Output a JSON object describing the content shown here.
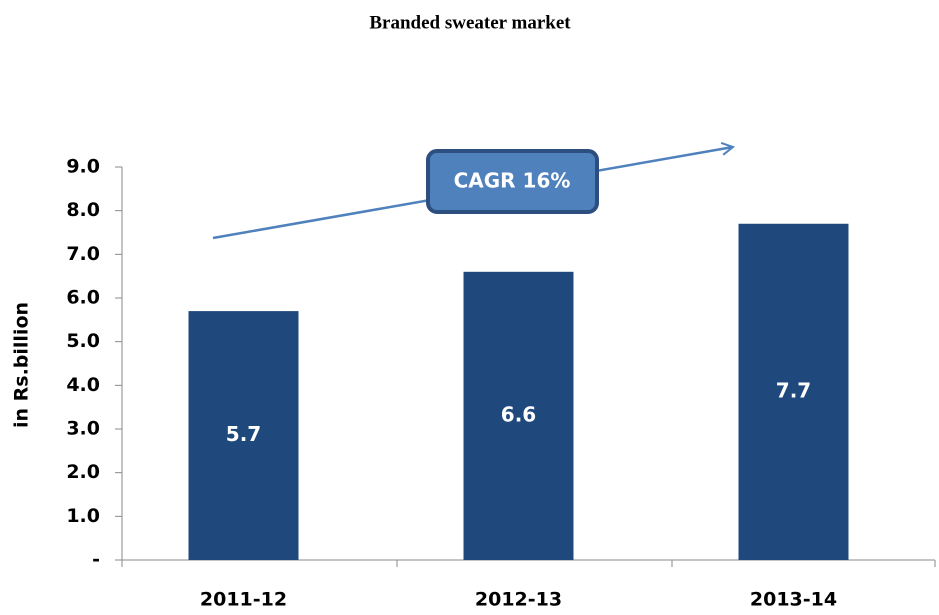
{
  "chart_data": {
    "type": "bar",
    "title": "Branded sweater market",
    "y_label": "in Rs.billion",
    "annotation": "CAGR 16%",
    "categories": [
      "2011-12",
      "2012-13",
      "2013-14"
    ],
    "values": [
      5.7,
      6.6,
      7.7
    ],
    "color": "#1f497d",
    "ylim": [
      0,
      9
    ],
    "yticks": [
      {
        "value": 0,
        "label": "-"
      },
      {
        "value": 1,
        "label": "1.0"
      },
      {
        "value": 2,
        "label": "2.0"
      },
      {
        "value": 3,
        "label": "3.0"
      },
      {
        "value": 4,
        "label": "4.0"
      },
      {
        "value": 5,
        "label": "5.0"
      },
      {
        "value": 6,
        "label": "6.0"
      },
      {
        "value": 7,
        "label": "7.0"
      },
      {
        "value": 8,
        "label": "8.0"
      },
      {
        "value": 9,
        "label": "9.0"
      }
    ]
  }
}
